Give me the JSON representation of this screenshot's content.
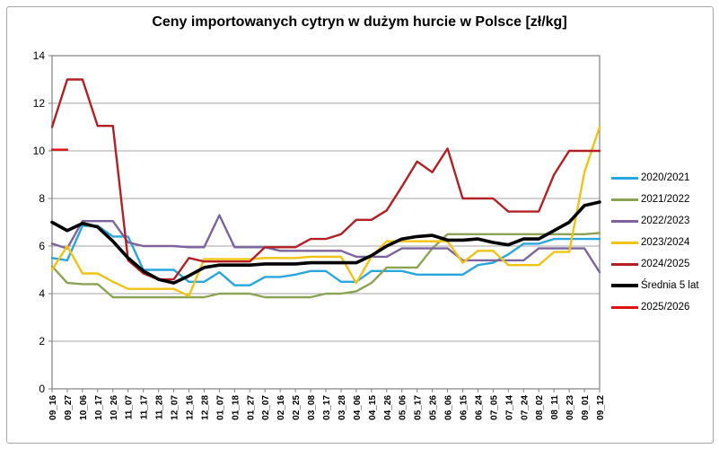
{
  "title": "Ceny importowanych cytryn w dużym hurcie w Polsce [zł/kg]",
  "chart_data": {
    "type": "line",
    "title": "Ceny importowanych cytryn w dużym hurcie w Polsce [zł/kg]",
    "xlabel": "",
    "ylabel": "",
    "ylim": [
      0,
      14
    ],
    "yticks": [
      0,
      2,
      4,
      6,
      8,
      10,
      12,
      14
    ],
    "grid": "horizontal-gray",
    "legend_position": "right",
    "x_labels": [
      "09_16",
      "09_27",
      "10_06",
      "10_17",
      "10_26",
      "11_07",
      "11_17",
      "11_28",
      "12_07",
      "12_16",
      "12_28",
      "01_07",
      "01_18",
      "01_27",
      "02_07",
      "02_16",
      "02_25",
      "03_08",
      "03_17",
      "03_28",
      "04_06",
      "04_15",
      "04_26",
      "05_06",
      "05_17",
      "05_26",
      "06_06",
      "06_15",
      "06_24",
      "07_05",
      "07_14",
      "07_24",
      "08_02",
      "08_11",
      "08_23",
      "09_01",
      "09_12"
    ],
    "series": [
      {
        "name": "2020/2021",
        "color": "#29a7dd",
        "avg": false,
        "values": [
          5.5,
          5.4,
          6.85,
          6.85,
          6.4,
          6.4,
          5.0,
          5.0,
          5.0,
          4.5,
          4.5,
          4.9,
          4.35,
          4.35,
          4.7,
          4.7,
          4.8,
          4.95,
          4.95,
          4.5,
          4.5,
          4.95,
          4.95,
          4.95,
          4.8,
          4.8,
          4.8,
          4.8,
          5.2,
          5.3,
          5.65,
          6.1,
          6.1,
          6.3,
          6.3,
          6.3,
          6.3
        ]
      },
      {
        "name": "2021/2022",
        "color": "#8ca353",
        "avg": false,
        "values": [
          5.15,
          4.45,
          4.4,
          4.4,
          3.85,
          3.85,
          3.85,
          3.85,
          3.85,
          3.85,
          3.85,
          4.0,
          4.0,
          4.0,
          3.85,
          3.85,
          3.85,
          3.85,
          4.0,
          4.0,
          4.1,
          4.45,
          5.1,
          5.1,
          5.1,
          5.9,
          6.5,
          6.5,
          6.5,
          6.5,
          6.5,
          6.5,
          6.5,
          6.5,
          6.5,
          6.5,
          6.55
        ]
      },
      {
        "name": "2022/2023",
        "color": "#7d639e",
        "avg": false,
        "values": [
          6.1,
          5.9,
          7.05,
          7.05,
          7.05,
          6.15,
          6.0,
          6.0,
          6.0,
          5.95,
          5.95,
          7.3,
          5.95,
          5.95,
          5.95,
          5.8,
          5.8,
          5.8,
          5.8,
          5.8,
          5.55,
          5.55,
          5.55,
          5.9,
          5.9,
          5.9,
          5.9,
          5.4,
          5.4,
          5.4,
          5.4,
          5.4,
          5.9,
          5.9,
          5.9,
          5.9,
          4.9
        ]
      },
      {
        "name": "2023/2024",
        "color": "#f0c213",
        "avg": false,
        "values": [
          5.0,
          6.0,
          4.85,
          4.85,
          4.5,
          4.2,
          4.2,
          4.2,
          4.2,
          3.9,
          5.45,
          5.45,
          5.45,
          5.45,
          5.5,
          5.5,
          5.5,
          5.55,
          5.55,
          5.55,
          4.45,
          5.55,
          6.2,
          6.2,
          6.2,
          6.2,
          6.2,
          5.3,
          5.8,
          5.8,
          5.2,
          5.2,
          5.2,
          5.75,
          5.75,
          9.1,
          11.0
        ]
      },
      {
        "name": "2024/2025",
        "color": "#b22025",
        "avg": false,
        "values": [
          11.0,
          13.0,
          13.0,
          11.05,
          11.05,
          5.4,
          4.85,
          4.6,
          4.6,
          5.5,
          5.35,
          5.35,
          5.35,
          5.35,
          5.95,
          5.95,
          5.95,
          6.3,
          6.3,
          6.5,
          7.1,
          7.1,
          7.5,
          8.5,
          9.55,
          9.1,
          10.1,
          8.0,
          8.0,
          8.0,
          7.45,
          7.45,
          7.45,
          9.0,
          10.0,
          10.0,
          10.0
        ]
      },
      {
        "name": "Średnia 5 lat",
        "color": "#000000",
        "avg": true,
        "values": [
          7.0,
          6.65,
          6.95,
          6.8,
          6.2,
          5.5,
          4.95,
          4.6,
          4.45,
          4.75,
          5.1,
          5.2,
          5.2,
          5.2,
          5.25,
          5.25,
          5.25,
          5.3,
          5.3,
          5.3,
          5.3,
          5.6,
          6.0,
          6.3,
          6.4,
          6.45,
          6.25,
          6.25,
          6.3,
          6.15,
          6.05,
          6.3,
          6.3,
          6.65,
          7.0,
          7.7,
          7.85
        ]
      },
      {
        "name": "2025/2026",
        "color": "#e01111",
        "avg": false,
        "values": [
          10.05,
          10.05,
          null,
          null,
          null,
          null,
          null,
          null,
          null,
          null,
          null,
          null,
          null,
          null,
          null,
          null,
          null,
          null,
          null,
          null,
          null,
          null,
          null,
          null,
          null,
          null,
          null,
          null,
          null,
          null,
          null,
          null,
          null,
          null,
          null,
          null,
          null
        ]
      }
    ],
    "colors": {
      "gridline": "#a6a6a6",
      "plot_border": "#808080",
      "axis_text": "#000000"
    }
  }
}
